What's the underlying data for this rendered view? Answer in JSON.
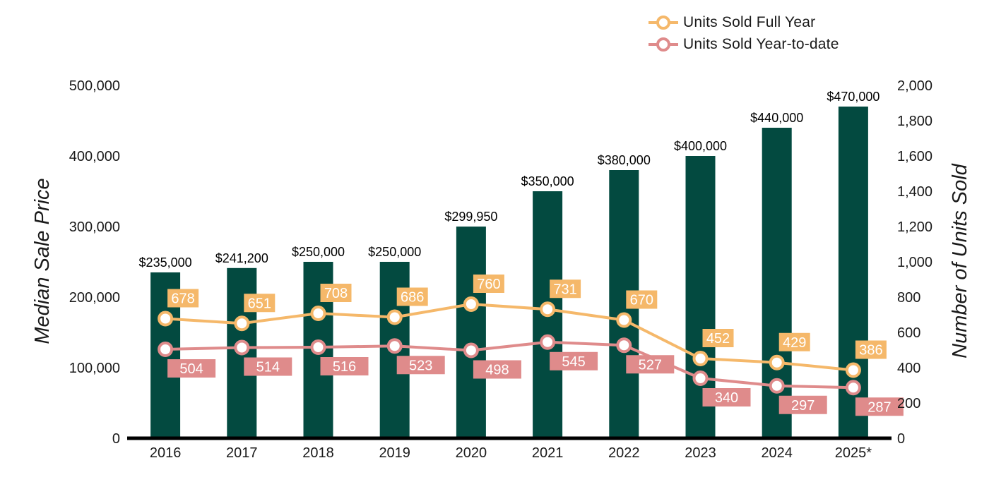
{
  "chart_data": {
    "type": "bar",
    "categories": [
      "2016",
      "2017",
      "2018",
      "2019",
      "2020",
      "2021",
      "2022",
      "2023",
      "2024",
      "2025*"
    ],
    "title": "",
    "ylabel": "Median Sale Price",
    "y2label": "Number of Units Sold",
    "ylim": [
      0,
      500000
    ],
    "y2lim": [
      0,
      2000
    ],
    "yticks": [
      "0",
      "100,000",
      "200,000",
      "300,000",
      "400,000",
      "500,000"
    ],
    "y2ticks": [
      "0",
      "200",
      "400",
      "600",
      "800",
      "1,000",
      "1,200",
      "1,400",
      "1,600",
      "1,800",
      "2,000"
    ],
    "grid": false,
    "legend_position": "top-right",
    "bars": {
      "name": "Median Sale Price",
      "values": [
        235000,
        241200,
        250000,
        250000,
        299950,
        350000,
        380000,
        400000,
        440000,
        470000
      ],
      "labels": [
        "$235,000",
        "$241,200",
        "$250,000",
        "$250,000",
        "$299,950",
        "$350,000",
        "$380,000",
        "$400,000",
        "$440,000",
        "$470,000"
      ],
      "color": "#034a40"
    },
    "series": [
      {
        "name": "Units Sold Full Year",
        "axis": "right",
        "type": "line",
        "values": [
          678,
          651,
          708,
          686,
          760,
          731,
          670,
          452,
          429,
          386
        ],
        "labels": [
          "678",
          "651",
          "708",
          "686",
          "760",
          "731",
          "670",
          "452",
          "429",
          "386"
        ],
        "color": "#f5b86a"
      },
      {
        "name": "Units Sold Year-to-date",
        "axis": "right",
        "type": "line",
        "values": [
          504,
          514,
          516,
          523,
          498,
          545,
          527,
          340,
          297,
          287
        ],
        "labels": [
          "504",
          "514",
          "516",
          "523",
          "498",
          "545",
          "527",
          "340",
          "297",
          "287"
        ],
        "color": "#df8b8b"
      }
    ]
  },
  "legend": {
    "items": [
      {
        "label": "Units Sold Full Year",
        "color": "#f5b86a"
      },
      {
        "label": "Units Sold Year-to-date",
        "color": "#df8b8b"
      }
    ]
  }
}
